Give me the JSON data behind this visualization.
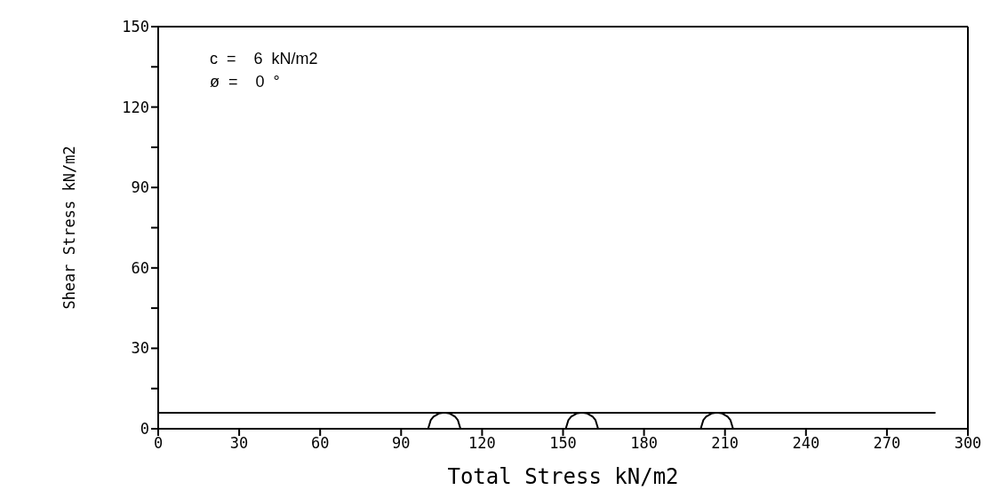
{
  "chart_data": {
    "type": "line",
    "xlabel": "Total Stress  kN/m2",
    "ylabel": "Shear Stress  kN/m2",
    "annotations": [
      "c  =    6  kN/m2",
      "ø  =    0  °"
    ],
    "xlim": [
      0,
      300
    ],
    "xticks": [
      0,
      30,
      60,
      90,
      120,
      150,
      180,
      210,
      240,
      270,
      300
    ],
    "ylim": [
      0,
      150
    ],
    "yticks": [
      0,
      {
        "value": 15,
        "label": null
      },
      30,
      {
        "value": 45,
        "label": null
      },
      60,
      {
        "value": 75,
        "label": null
      },
      90,
      {
        "value": 105,
        "label": null
      },
      120,
      {
        "value": 135,
        "label": null
      },
      150
    ],
    "grid": false,
    "marker": "none",
    "line_style": "solid",
    "series": [
      {
        "color": "#000000",
        "x": [
          0,
          288
        ],
        "values": [
          6,
          6
        ]
      },
      {
        "color": "#000000",
        "x": [
          100,
          101,
          102,
          104,
          106,
          108,
          110,
          111,
          112
        ],
        "values": [
          0,
          3.3,
          4.5,
          5.7,
          6,
          5.7,
          4.5,
          3.3,
          0
        ]
      },
      {
        "color": "#000000",
        "x": [
          151,
          152,
          153,
          155,
          157,
          159,
          161,
          162,
          163
        ],
        "values": [
          0,
          3.3,
          4.5,
          5.7,
          6,
          5.7,
          4.5,
          3.3,
          0
        ]
      },
      {
        "color": "#000000",
        "x": [
          201,
          202,
          203,
          205,
          207,
          209,
          211,
          212,
          213
        ],
        "values": [
          0,
          3.3,
          4.5,
          5.7,
          6,
          5.7,
          4.5,
          3.3,
          0
        ]
      }
    ]
  }
}
